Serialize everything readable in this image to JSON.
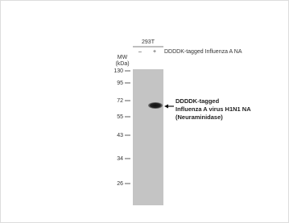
{
  "sample": {
    "cell_line": "293T",
    "lanes": [
      "–",
      "+"
    ],
    "treatment": "DDDDK-tagged Influenza A NA"
  },
  "mw_axis": {
    "label": "MW",
    "unit": "(kDa)",
    "markers": [
      "130",
      "95",
      "72",
      "55",
      "43",
      "34",
      "26"
    ]
  },
  "band_annotation": {
    "lines": [
      "DDDDK-tagged",
      "Influenza A virus H1N1 NA",
      "(Neuraminidase)"
    ]
  }
}
